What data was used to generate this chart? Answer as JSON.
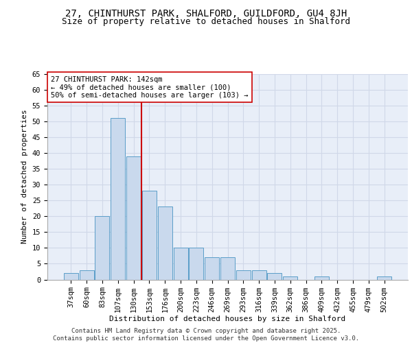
{
  "title1": "27, CHINTHURST PARK, SHALFORD, GUILDFORD, GU4 8JH",
  "title2": "Size of property relative to detached houses in Shalford",
  "xlabel": "Distribution of detached houses by size in Shalford",
  "ylabel": "Number of detached properties",
  "categories": [
    "37sqm",
    "60sqm",
    "83sqm",
    "107sqm",
    "130sqm",
    "153sqm",
    "176sqm",
    "200sqm",
    "223sqm",
    "246sqm",
    "269sqm",
    "293sqm",
    "316sqm",
    "339sqm",
    "362sqm",
    "386sqm",
    "409sqm",
    "432sqm",
    "455sqm",
    "479sqm",
    "502sqm"
  ],
  "values": [
    2,
    3,
    20,
    51,
    39,
    28,
    23,
    10,
    10,
    7,
    7,
    3,
    3,
    2,
    1,
    0,
    1,
    0,
    0,
    0,
    1
  ],
  "bar_color": "#c9d9ed",
  "bar_edge_color": "#5a9dc8",
  "vline_x": 4.5,
  "vline_color": "#cc0000",
  "annotation_text": "27 CHINTHURST PARK: 142sqm\n← 49% of detached houses are smaller (100)\n50% of semi-detached houses are larger (103) →",
  "annotation_box_color": "#ffffff",
  "annotation_edge_color": "#cc0000",
  "ylim": [
    0,
    65
  ],
  "yticks": [
    0,
    5,
    10,
    15,
    20,
    25,
    30,
    35,
    40,
    45,
    50,
    55,
    60,
    65
  ],
  "grid_color": "#d0d8e8",
  "bg_color": "#e8eef8",
  "footer": "Contains HM Land Registry data © Crown copyright and database right 2025.\nContains public sector information licensed under the Open Government Licence v3.0.",
  "title_fontsize": 10,
  "subtitle_fontsize": 9,
  "axis_label_fontsize": 8,
  "tick_fontsize": 7.5,
  "annotation_fontsize": 7.5,
  "footer_fontsize": 6.5
}
